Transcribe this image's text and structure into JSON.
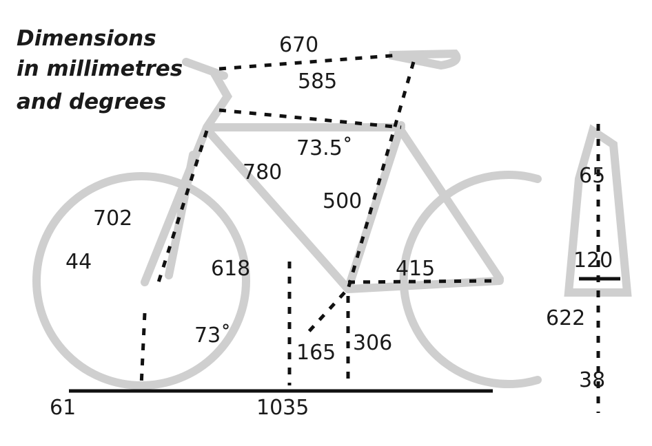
{
  "title": [
    "Dimensions",
    "in millimetres",
    "and degrees"
  ],
  "labels": [
    "670",
    "585",
    "73.5˚",
    "780",
    "500",
    "702",
    "44",
    "618",
    "415",
    "73˚",
    "165",
    "306",
    "61",
    "1035",
    "65",
    "120",
    "622",
    "38"
  ]
}
